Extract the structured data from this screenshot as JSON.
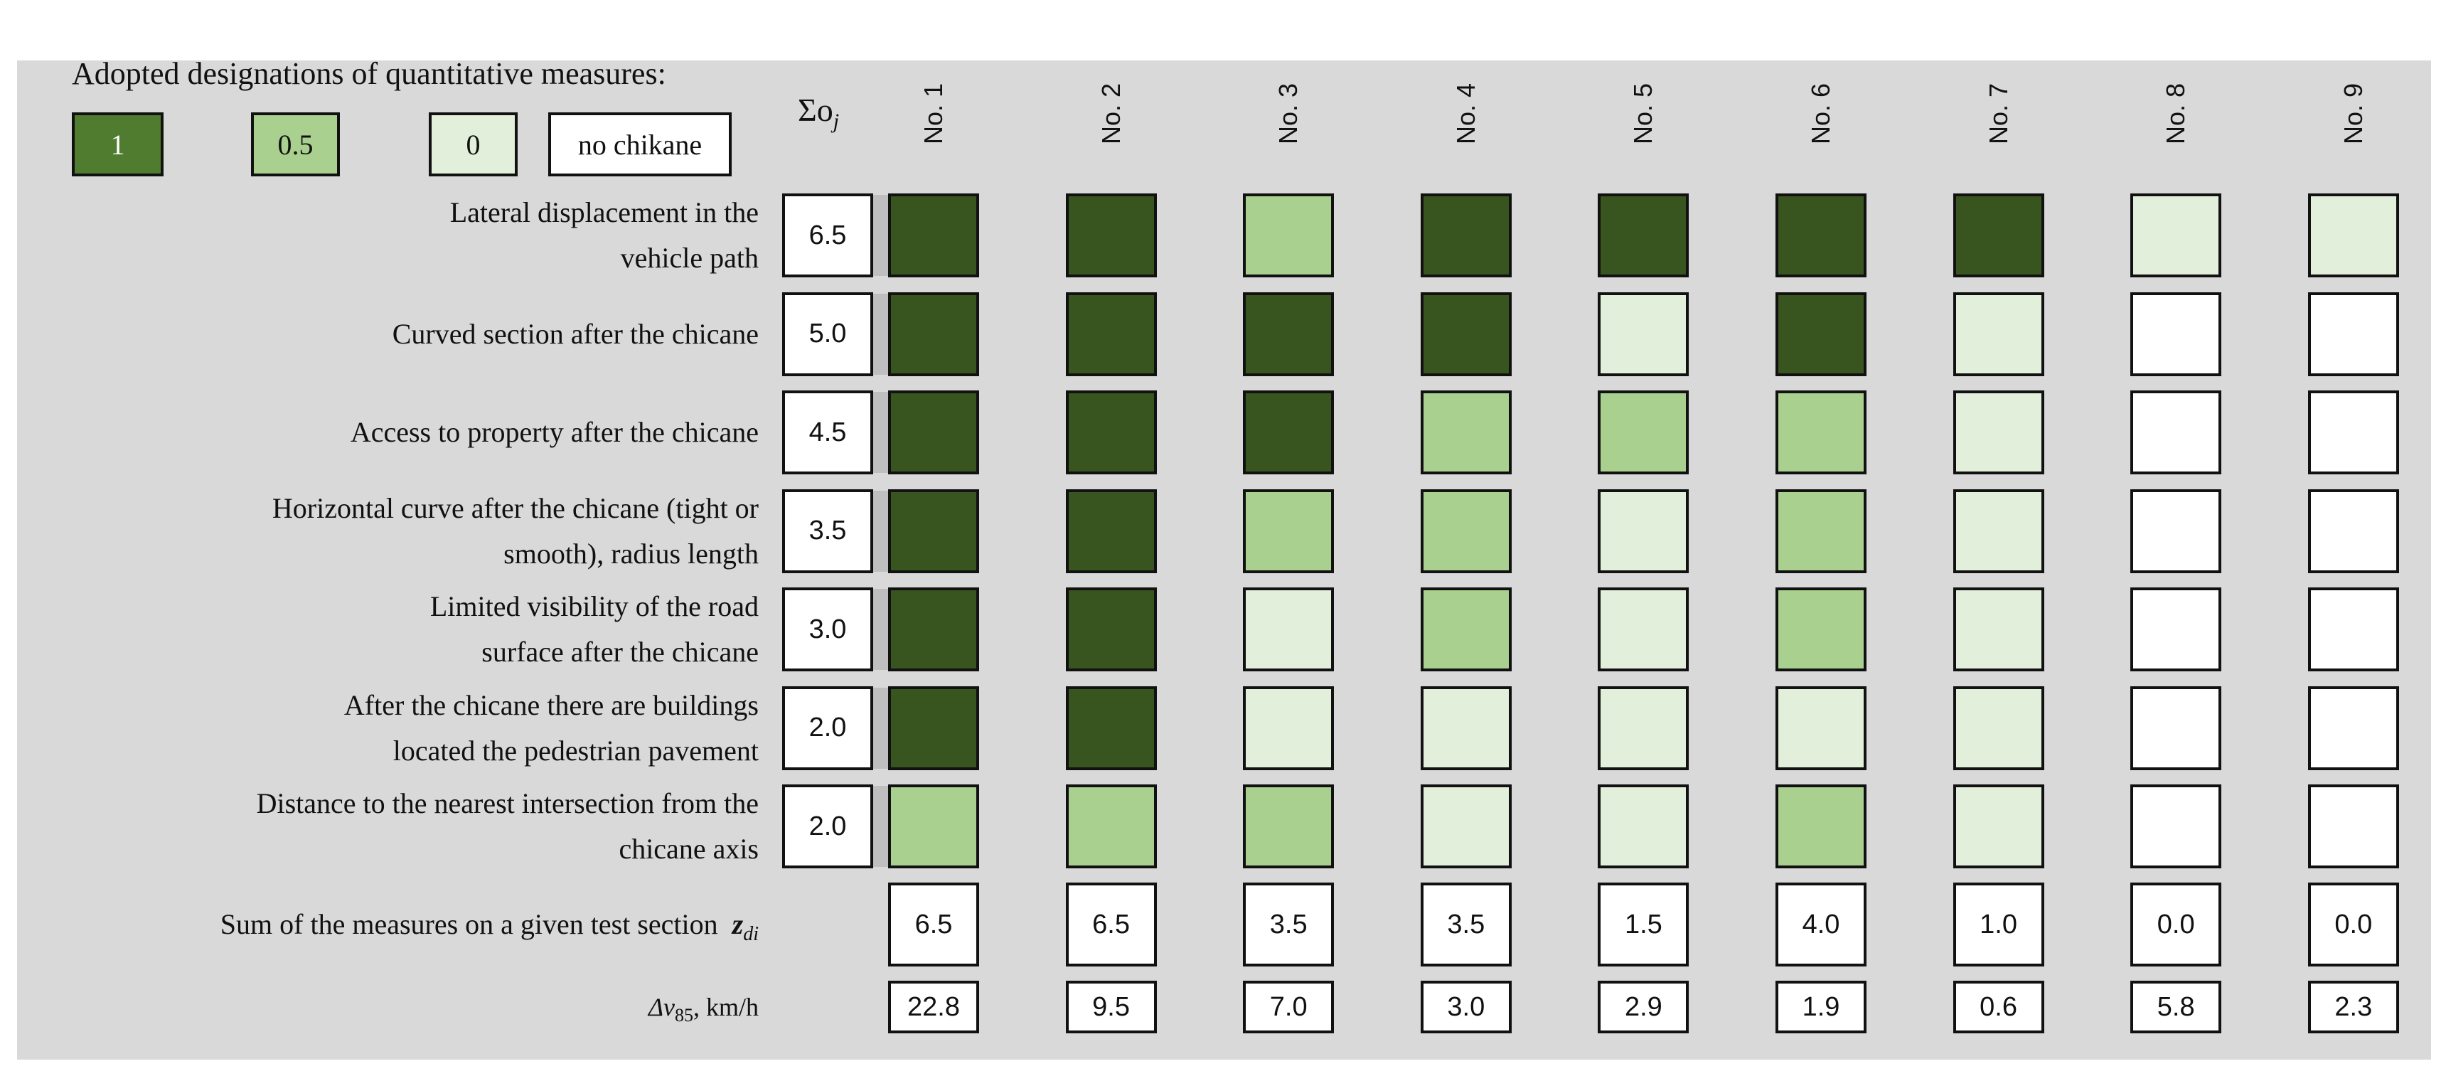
{
  "legend": {
    "title": "Adopted designations of quantitative measures:",
    "items": [
      {
        "label": "1",
        "color": "#507c2f",
        "text_color": "#ffffff"
      },
      {
        "label": "0.5",
        "color": "#a9d08e",
        "text_color": "#111111"
      },
      {
        "label": "0",
        "color": "#e2efda",
        "text_color": "#111111"
      },
      {
        "label": "no chikane",
        "color": "#ffffff",
        "text_color": "#111111"
      }
    ]
  },
  "cell_colors": {
    "1": "#38541f",
    "0.5": "#a9d08e",
    "0": "#e2efda",
    "none": "#ffffff"
  },
  "sigma_header": {
    "symbol": "Σo",
    "subscript": "j"
  },
  "columns": [
    "No. 1",
    "No. 2",
    "No. 3",
    "No. 4",
    "No. 5",
    "No. 6",
    "No. 7",
    "No. 8",
    "No. 9"
  ],
  "rows": [
    {
      "label_lines": [
        "Lateral displacement in the",
        "vehicle path"
      ],
      "sum": "6.5",
      "values": [
        1,
        1,
        0.5,
        1,
        1,
        1,
        1,
        0,
        0
      ]
    },
    {
      "label_lines": [
        "Curved section after the chicane"
      ],
      "sum": "5.0",
      "values": [
        1,
        1,
        1,
        1,
        0,
        1,
        0,
        null,
        null
      ]
    },
    {
      "label_lines": [
        "Access to property after the chicane"
      ],
      "sum": "4.5",
      "values": [
        1,
        1,
        1,
        0.5,
        0.5,
        0.5,
        0,
        null,
        null
      ]
    },
    {
      "label_lines": [
        "Horizontal curve after the chicane (tight or",
        "smooth), radius length"
      ],
      "sum": "3.5",
      "values": [
        1,
        1,
        0.5,
        0.5,
        0,
        0.5,
        0,
        null,
        null
      ]
    },
    {
      "label_lines": [
        "Limited visibility of the road",
        "surface after the chicane"
      ],
      "sum": "3.0",
      "values": [
        1,
        1,
        0,
        0.5,
        0,
        0.5,
        0,
        null,
        null
      ]
    },
    {
      "label_lines": [
        "After the chicane there are buildings",
        "located the pedestrian pavement"
      ],
      "sum": "2.0",
      "values": [
        1,
        1,
        0,
        0,
        0,
        0,
        0,
        null,
        null
      ]
    },
    {
      "label_lines": [
        "Distance to the nearest intersection from the",
        "chicane axis"
      ],
      "sum": "2.0",
      "values": [
        0.5,
        0.5,
        0.5,
        0,
        0,
        0.5,
        0,
        null,
        null
      ]
    }
  ],
  "sum_row": {
    "label": "Sum of the measures on a given test section",
    "symbol": "z",
    "subscript": "di",
    "values": [
      "6.5",
      "6.5",
      "3.5",
      "3.5",
      "1.5",
      "4.0",
      "1.0",
      "0.0",
      "0.0"
    ]
  },
  "dv_row": {
    "symbol": "Δv",
    "subscript": "85",
    "unit": ", km/h",
    "values": [
      "22.8",
      "9.5",
      "7.0",
      "3.0",
      "2.9",
      "1.9",
      "0.6",
      "5.8",
      "2.3"
    ]
  }
}
